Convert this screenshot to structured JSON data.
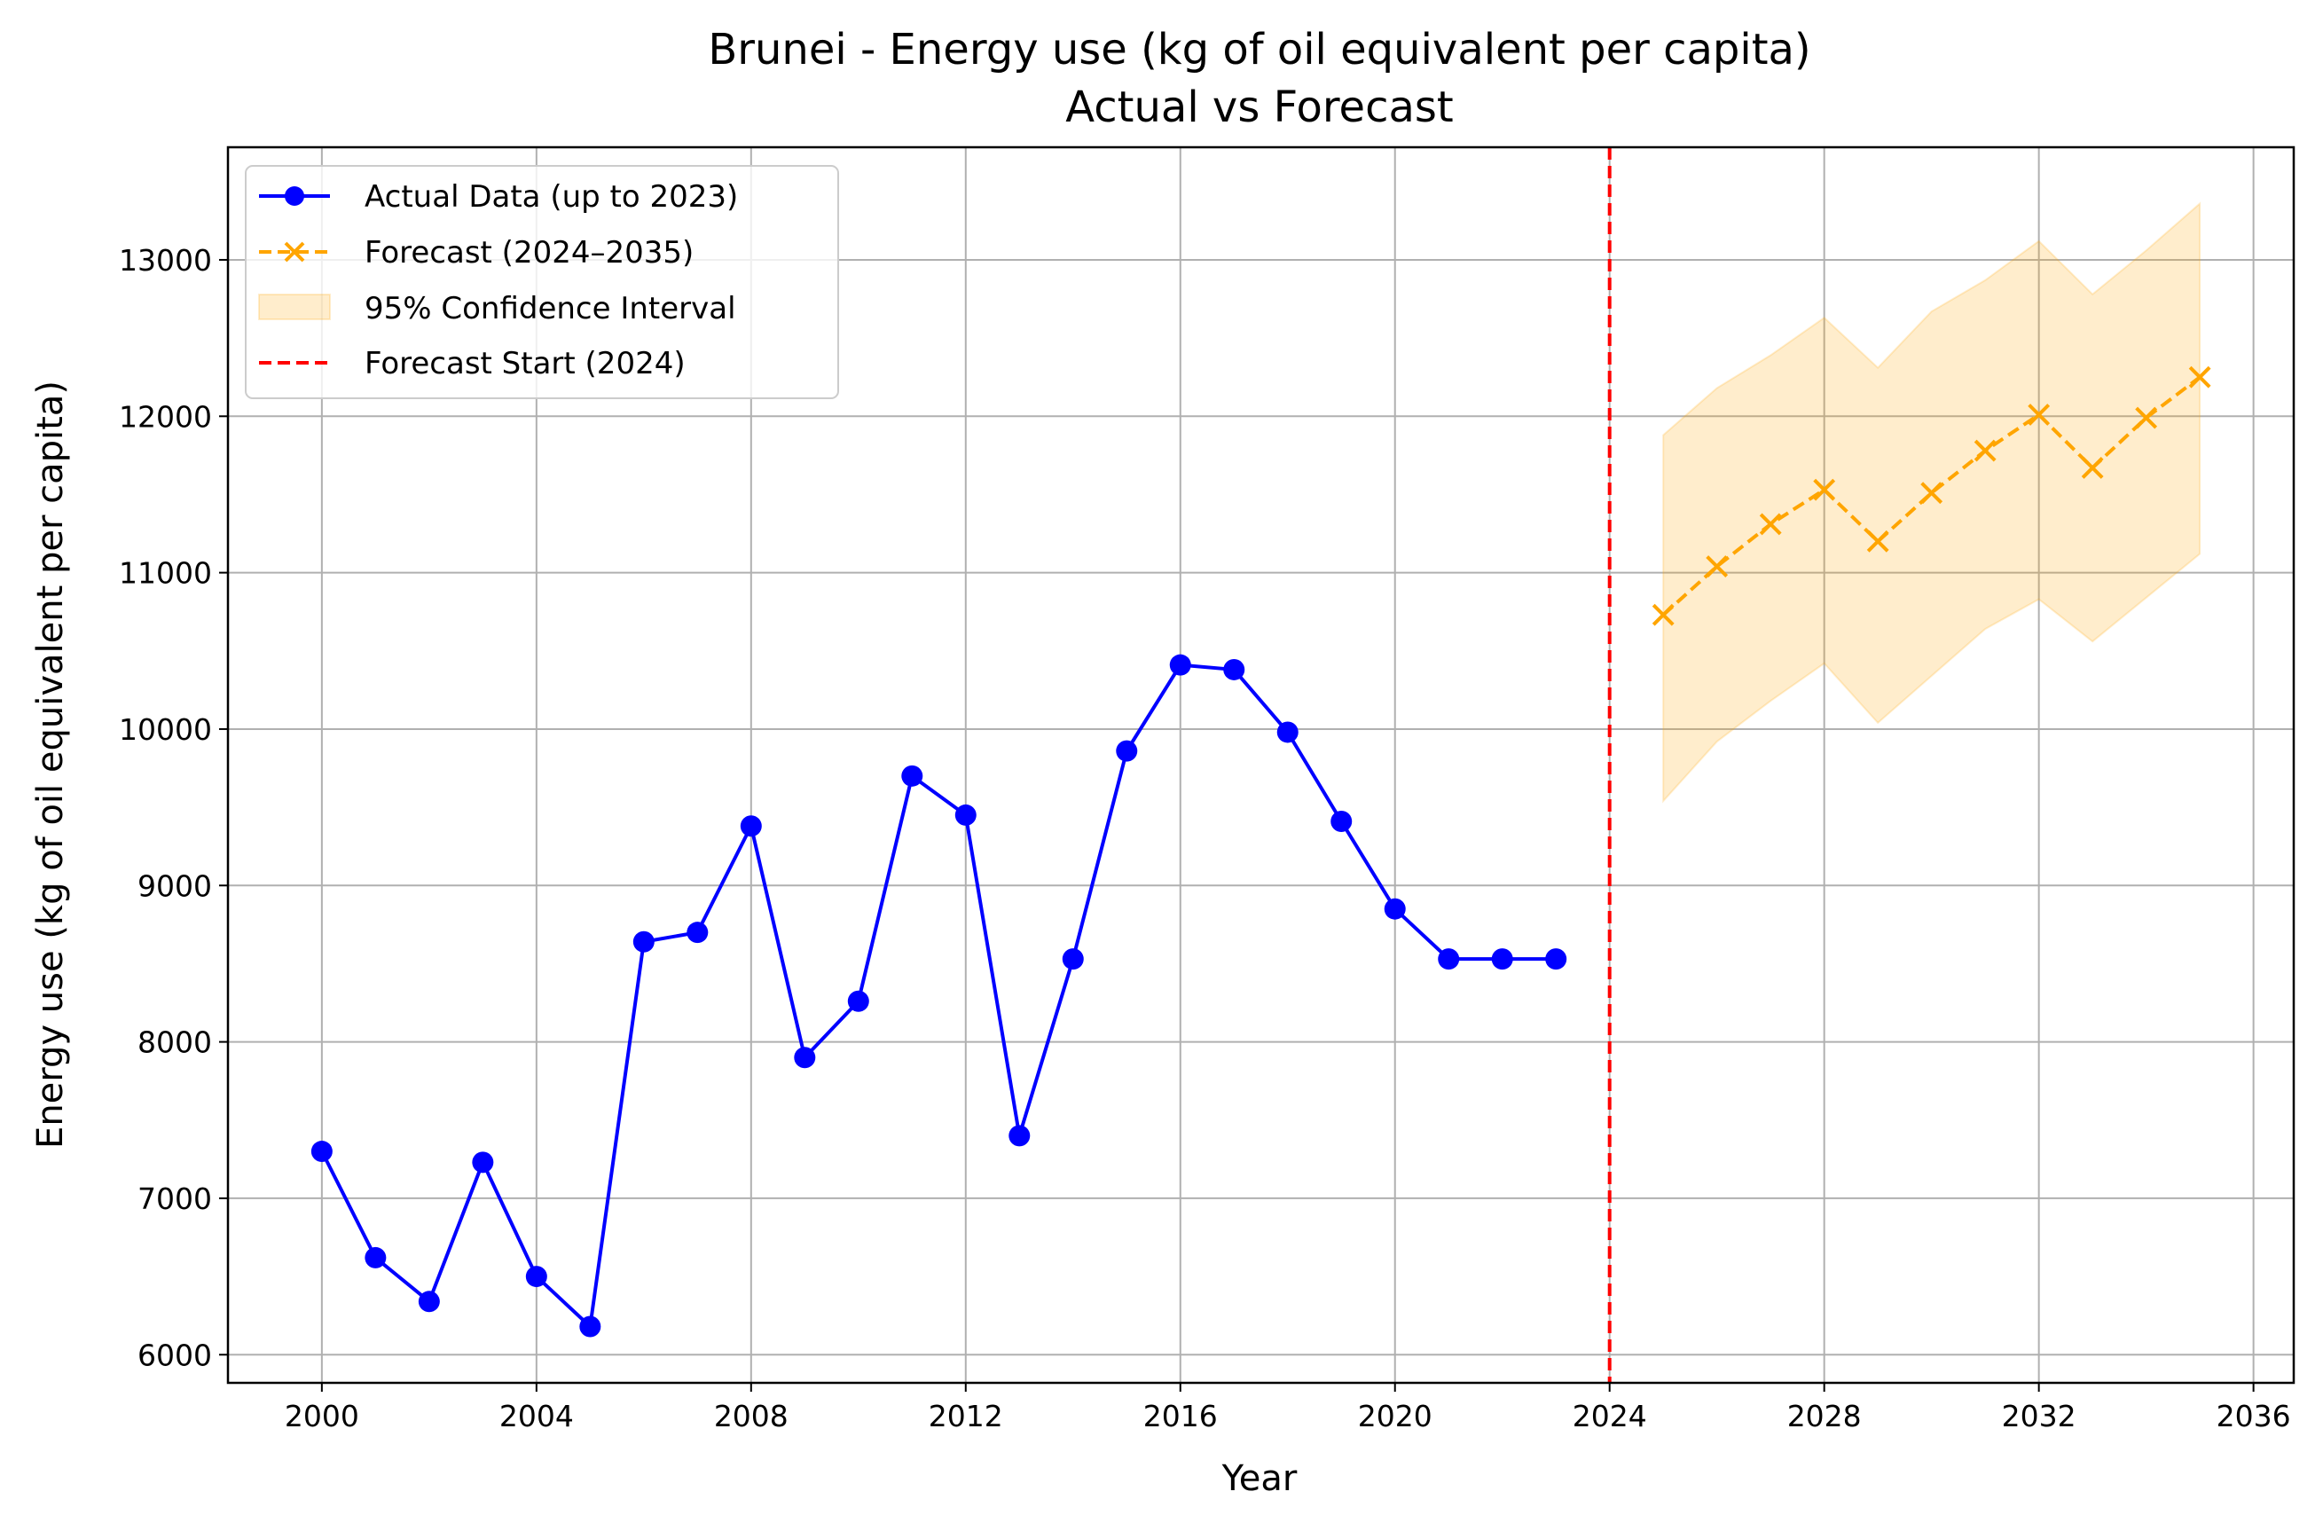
{
  "chart_data": {
    "type": "line",
    "title": "Brunei - Energy use (kg of oil equivalent per capita)",
    "subtitle": "Actual vs Forecast",
    "xlabel": "Year",
    "ylabel": "Energy use (kg of oil equivalent per capita)",
    "xlim": [
      1998.25,
      2036.75
    ],
    "ylim": [
      5820,
      13720
    ],
    "x_ticks": [
      2000,
      2004,
      2008,
      2012,
      2016,
      2020,
      2024,
      2028,
      2032,
      2036
    ],
    "y_ticks": [
      6000,
      7000,
      8000,
      9000,
      10000,
      11000,
      12000,
      13000
    ],
    "grid": true,
    "legend_position": "upper-left",
    "series": [
      {
        "name": "Actual Data (up to 2023)",
        "style": "solid-line-circle-markers",
        "color": "#0000ff",
        "x": [
          2000,
          2001,
          2002,
          2003,
          2004,
          2005,
          2006,
          2007,
          2008,
          2009,
          2010,
          2011,
          2012,
          2013,
          2014,
          2015,
          2016,
          2017,
          2018,
          2019,
          2020,
          2021,
          2022,
          2023
        ],
        "y": [
          7300,
          6620,
          6340,
          7230,
          6500,
          6180,
          8640,
          8700,
          9380,
          7900,
          8260,
          9700,
          9450,
          7400,
          8530,
          9860,
          10410,
          10380,
          9980,
          9410,
          8850,
          8530,
          8530,
          8530
        ]
      },
      {
        "name": "Forecast (2024–2035)",
        "style": "dashed-line-x-markers",
        "color": "#ffa500",
        "x": [
          2025,
          2026,
          2027,
          2028,
          2029,
          2030,
          2031,
          2032,
          2033,
          2034,
          2035
        ],
        "y": [
          10730,
          11040,
          11310,
          11530,
          11200,
          11510,
          11780,
          12010,
          11670,
          11990,
          12250
        ]
      }
    ],
    "confidence_interval": {
      "name": "95% Confidence Interval",
      "color": "#ffa500",
      "opacity": 0.2,
      "x": [
        2025,
        2026,
        2027,
        2028,
        2029,
        2030,
        2031,
        2032,
        2033,
        2034,
        2035
      ],
      "lower": [
        9540,
        9920,
        10180,
        10420,
        10040,
        10340,
        10640,
        10830,
        10560,
        10840,
        11120
      ],
      "upper": [
        11880,
        12180,
        12390,
        12630,
        12310,
        12670,
        12870,
        13120,
        12780,
        13060,
        13360
      ]
    },
    "vline": {
      "name": "Forecast Start (2024)",
      "x": 2024,
      "color": "#ff0000",
      "style": "dashed"
    }
  }
}
